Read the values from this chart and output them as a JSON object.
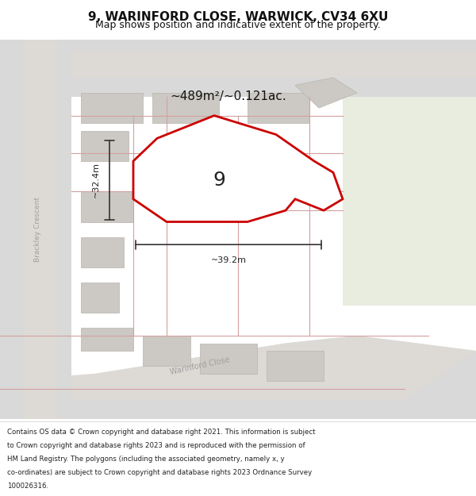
{
  "title_line1": "9, WARINFORD CLOSE, WARWICK, CV34 6XU",
  "title_line2": "Map shows position and indicative extent of the property.",
  "area_text": "~489m²/~0.121ac.",
  "label_number": "9",
  "dim_height": "~32.4m",
  "dim_width": "~39.2m",
  "footer_text": "Contains OS data © Crown copyright and database right 2021. This information is subject to Crown copyright and database rights 2023 and is reproduced with the permission of HM Land Registry. The polygons (including the associated geometry, namely x, y co-ordinates) are subject to Crown copyright and database rights 2023 Ordnance Survey 100026316.",
  "bg_color": "#f0ede8",
  "map_bg": "#f0ede8",
  "road_color": "#d9d9d9",
  "road_outline": "#c8a8a0",
  "building_color": "#d4d0cc",
  "plot_fill": "#ffffff",
  "plot_edge": "#cc0000",
  "green_area": "#e8ede0",
  "footer_bg": "#ffffff",
  "road_label_color": "#a0a0a0",
  "street_label_color": "#888888"
}
